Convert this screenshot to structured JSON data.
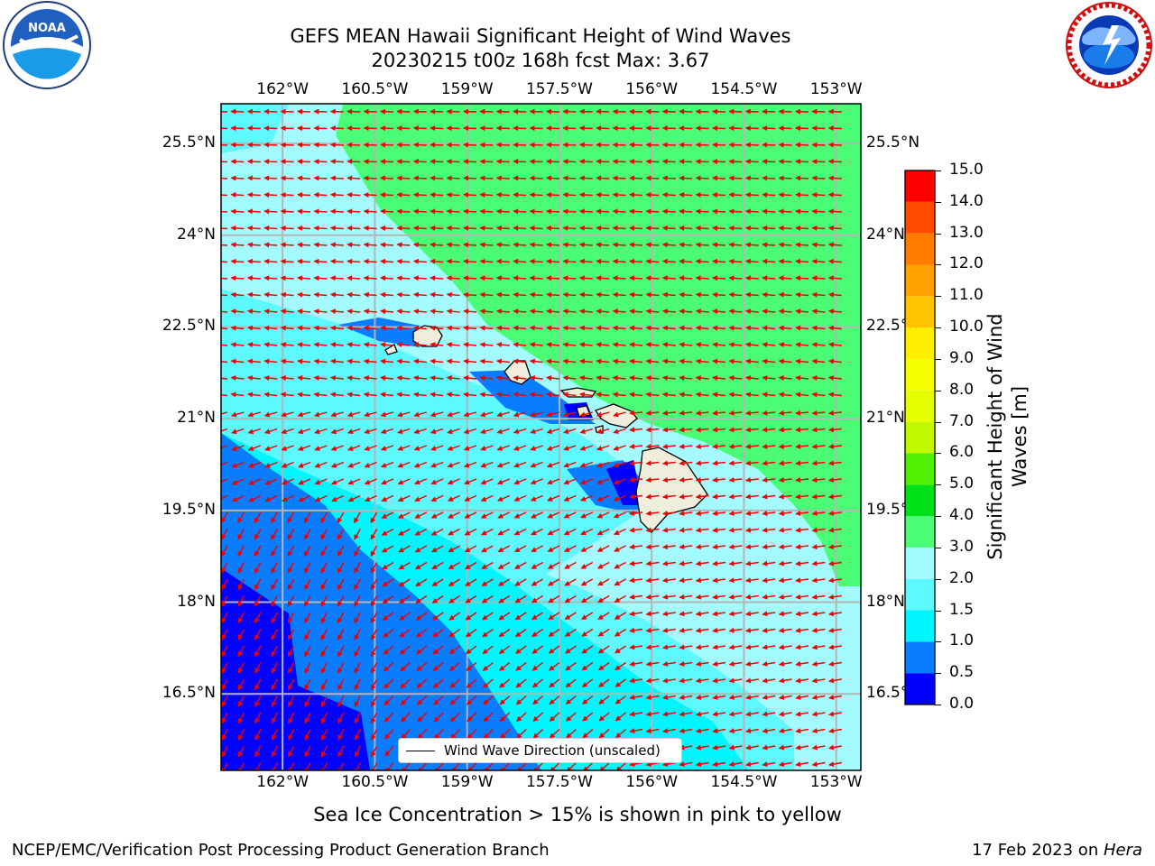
{
  "header": {
    "title_line1": "GEFS MEAN Hawaii Significant Height of Wind Waves",
    "title_line2": "20230215 t00z 168h fcst   Max: 3.67"
  },
  "logos": {
    "noaa": {
      "icon": "noaa-logo-icon",
      "text": "NOAA",
      "ring_text": "NATIONAL OCEANIC AND ATMOSPHERIC ADMINISTRATION · U.S. DEPARTMENT OF COMMERCE"
    },
    "nws": {
      "icon": "nws-logo-icon",
      "ring_text": "NATIONAL WEATHER SERVICE"
    }
  },
  "map": {
    "lon_ticks": [
      "162°W",
      "160.5°W",
      "159°W",
      "157.5°W",
      "156°W",
      "154.5°W",
      "153°W"
    ],
    "lat_ticks": [
      "25.5°N",
      "24°N",
      "22.5°N",
      "21°N",
      "19.5°N",
      "18°N",
      "16.5°N"
    ],
    "lon_range": [
      -163,
      -152.6
    ],
    "lat_range": [
      15.25,
      26.15
    ],
    "legend_label": "Wind Wave Direction (unscaled)",
    "arrow_color": "#ee0000",
    "land_color": "#efeedd"
  },
  "colorbar": {
    "label_line1": "Significant Height of Wind",
    "label_line2": "Waves [m]",
    "ticks": [
      "15.0",
      "14.0",
      "13.0",
      "12.0",
      "11.0",
      "10.0",
      "9.0",
      "8.0",
      "7.0",
      "6.0",
      "5.0",
      "4.0",
      "3.0",
      "2.0",
      "1.5",
      "1.0",
      "0.5",
      "0.0"
    ],
    "bands": [
      {
        "from": 0.0,
        "to": 0.5,
        "color": "#0000ff"
      },
      {
        "from": 0.5,
        "to": 1.0,
        "color": "#0a7cff"
      },
      {
        "from": 1.0,
        "to": 1.5,
        "color": "#00f6ff"
      },
      {
        "from": 1.5,
        "to": 2.0,
        "color": "#5ef8ff"
      },
      {
        "from": 2.0,
        "to": 3.0,
        "color": "#a3fbff"
      },
      {
        "from": 3.0,
        "to": 4.0,
        "color": "#4bfc77"
      },
      {
        "from": 4.0,
        "to": 5.0,
        "color": "#00e018"
      },
      {
        "from": 5.0,
        "to": 6.0,
        "color": "#4ff000"
      },
      {
        "from": 6.0,
        "to": 7.0,
        "color": "#c0f800"
      },
      {
        "from": 7.0,
        "to": 8.0,
        "color": "#e6ff00"
      },
      {
        "from": 8.0,
        "to": 9.0,
        "color": "#f4ff00"
      },
      {
        "from": 9.0,
        "to": 10.0,
        "color": "#ffee00"
      },
      {
        "from": 10.0,
        "to": 11.0,
        "color": "#ffc400"
      },
      {
        "from": 11.0,
        "to": 12.0,
        "color": "#ffa000"
      },
      {
        "from": 12.0,
        "to": 13.0,
        "color": "#ff7c00"
      },
      {
        "from": 13.0,
        "to": 14.0,
        "color": "#ff4a00"
      },
      {
        "from": 14.0,
        "to": 15.0,
        "color": "#ff0000"
      }
    ]
  },
  "sea_ice_note": "Sea Ice Concentration > 15% is shown in pink to yellow",
  "footer": {
    "left": "NCEP/EMC/Verification Post Processing Product Generation Branch",
    "right_date": "17 Feb 2023 on ",
    "right_machine": "Hera"
  }
}
